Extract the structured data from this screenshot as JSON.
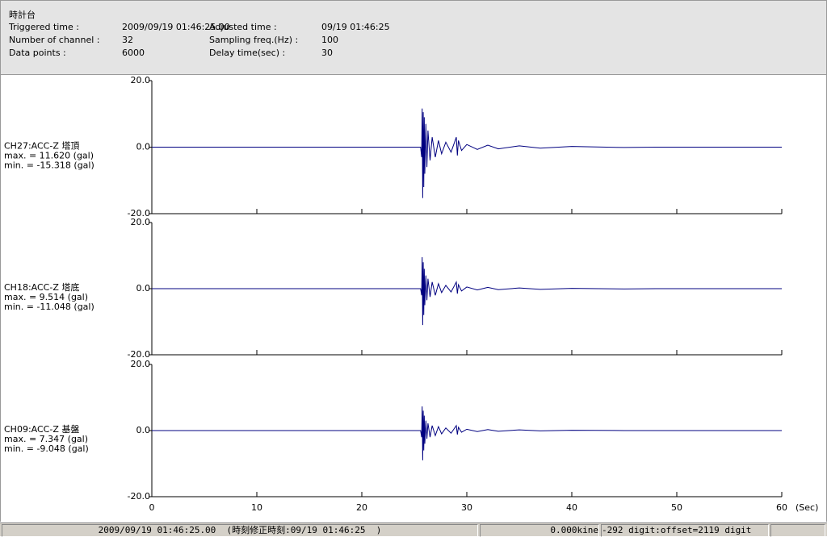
{
  "header": {
    "title": "時計台",
    "fields": [
      {
        "label": "Triggered time :",
        "value": "2009/09/19 01:46:25.00"
      },
      {
        "label": "Number of channel :",
        "value": "32"
      },
      {
        "label": "Data points :",
        "value": "6000"
      },
      {
        "label": "Adjusted time :",
        "value": "09/19 01:46:25"
      },
      {
        "label": "Sampling freq.(Hz) :",
        "value": "100"
      },
      {
        "label": "Delay time(sec) :",
        "value": "30"
      }
    ]
  },
  "chart_data": [
    {
      "type": "line",
      "channel": "CH27:ACC-Z 塔頂",
      "max": "max. = 11.620 (gal)",
      "min": "min. = -15.318 (gal)",
      "x": [
        0,
        25.6,
        25.7,
        25.75,
        25.8,
        25.85,
        25.9,
        25.95,
        26.0,
        26.1,
        26.2,
        26.3,
        26.5,
        26.7,
        27.0,
        27.3,
        27.6,
        28.0,
        28.5,
        29.0,
        29.1,
        29.2,
        29.5,
        30,
        31,
        32,
        33,
        35,
        37,
        40,
        45,
        48,
        60
      ],
      "series": [
        {
          "color": "#000080",
          "values": [
            0,
            0,
            -3,
            11.6,
            -15.3,
            10.5,
            -12,
            9,
            -8,
            7,
            -6,
            5,
            -4,
            3,
            -3,
            2,
            -2,
            1.5,
            -1.5,
            3,
            -2.5,
            2,
            -1,
            0.8,
            -0.7,
            0.6,
            -0.5,
            0.4,
            -0.3,
            0.2,
            -0.1,
            0,
            0
          ]
        }
      ],
      "ylim": [
        -20,
        20
      ],
      "yticks": [
        {
          "value": -20,
          "label": "-20.0"
        },
        {
          "value": 0,
          "label": "0.0"
        },
        {
          "value": 20,
          "label": "20.0"
        }
      ],
      "xlim": [
        0,
        60
      ],
      "xticks": [
        0,
        10,
        20,
        30,
        40,
        50,
        60
      ]
    },
    {
      "type": "line",
      "channel": "CH18:ACC-Z 塔底",
      "max": "max. = 9.514 (gal)",
      "min": "min. = -11.048 (gal)",
      "x": [
        0,
        25.6,
        25.7,
        25.75,
        25.8,
        25.85,
        25.9,
        25.95,
        26.0,
        26.1,
        26.2,
        26.3,
        26.5,
        26.7,
        27.0,
        27.3,
        27.6,
        28.0,
        28.5,
        29.0,
        29.1,
        29.2,
        29.5,
        30,
        31,
        32,
        33,
        35,
        37,
        40,
        45,
        48,
        60
      ],
      "series": [
        {
          "color": "#000080",
          "values": [
            0,
            0,
            -2,
            9.5,
            -11,
            8,
            -8,
            6,
            -5,
            4,
            -3.5,
            3,
            -2.5,
            2,
            -2,
            1.5,
            -1.2,
            1,
            -1,
            2,
            -1.5,
            1.2,
            -0.7,
            0.5,
            -0.4,
            0.4,
            -0.3,
            0.2,
            -0.2,
            0.1,
            -0.1,
            0,
            0
          ]
        }
      ],
      "ylim": [
        -20,
        20
      ],
      "yticks": [
        {
          "value": -20,
          "label": "-20.0"
        },
        {
          "value": 0,
          "label": "0.0"
        },
        {
          "value": 20,
          "label": "20.0"
        }
      ],
      "xlim": [
        0,
        60
      ],
      "xticks": [
        0,
        10,
        20,
        30,
        40,
        50,
        60
      ]
    },
    {
      "type": "line",
      "channel": "CH09:ACC-Z 基盤",
      "max": "max. = 7.347 (gal)",
      "min": "min. = -9.048 (gal)",
      "x": [
        0,
        25.6,
        25.7,
        25.75,
        25.8,
        25.85,
        25.9,
        25.95,
        26.0,
        26.1,
        26.2,
        26.3,
        26.5,
        26.7,
        27.0,
        27.3,
        27.6,
        28.0,
        28.5,
        29.0,
        29.1,
        29.2,
        29.5,
        30,
        31,
        32,
        33,
        35,
        37,
        40,
        45,
        48,
        60
      ],
      "series": [
        {
          "color": "#000080",
          "values": [
            0,
            0,
            -2,
            7.3,
            -9,
            6,
            -6,
            4.5,
            -4,
            3,
            -2.5,
            2.2,
            -2,
            1.5,
            -1.5,
            1.2,
            -1,
            0.8,
            -0.8,
            1.5,
            -1.2,
            1,
            -0.5,
            0.4,
            -0.3,
            0.3,
            -0.2,
            0.2,
            -0.1,
            0.1,
            0,
            0,
            0
          ]
        }
      ],
      "ylim": [
        -20,
        20
      ],
      "yticks": [
        {
          "value": -20,
          "label": "-20.0"
        },
        {
          "value": 0,
          "label": "0.0"
        },
        {
          "value": 20,
          "label": "20.0"
        }
      ],
      "xlim": [
        0,
        60
      ],
      "xticks": [
        0,
        10,
        20,
        30,
        40,
        50,
        60
      ]
    }
  ],
  "x_axis_unit": "(Sec)",
  "status_bar": [
    "2009/09/19 01:46:25.00  (時刻修正時刻:09/19 01:46:25  )",
    "0.000kine",
    "-292 digit:offset=2119 digit"
  ]
}
